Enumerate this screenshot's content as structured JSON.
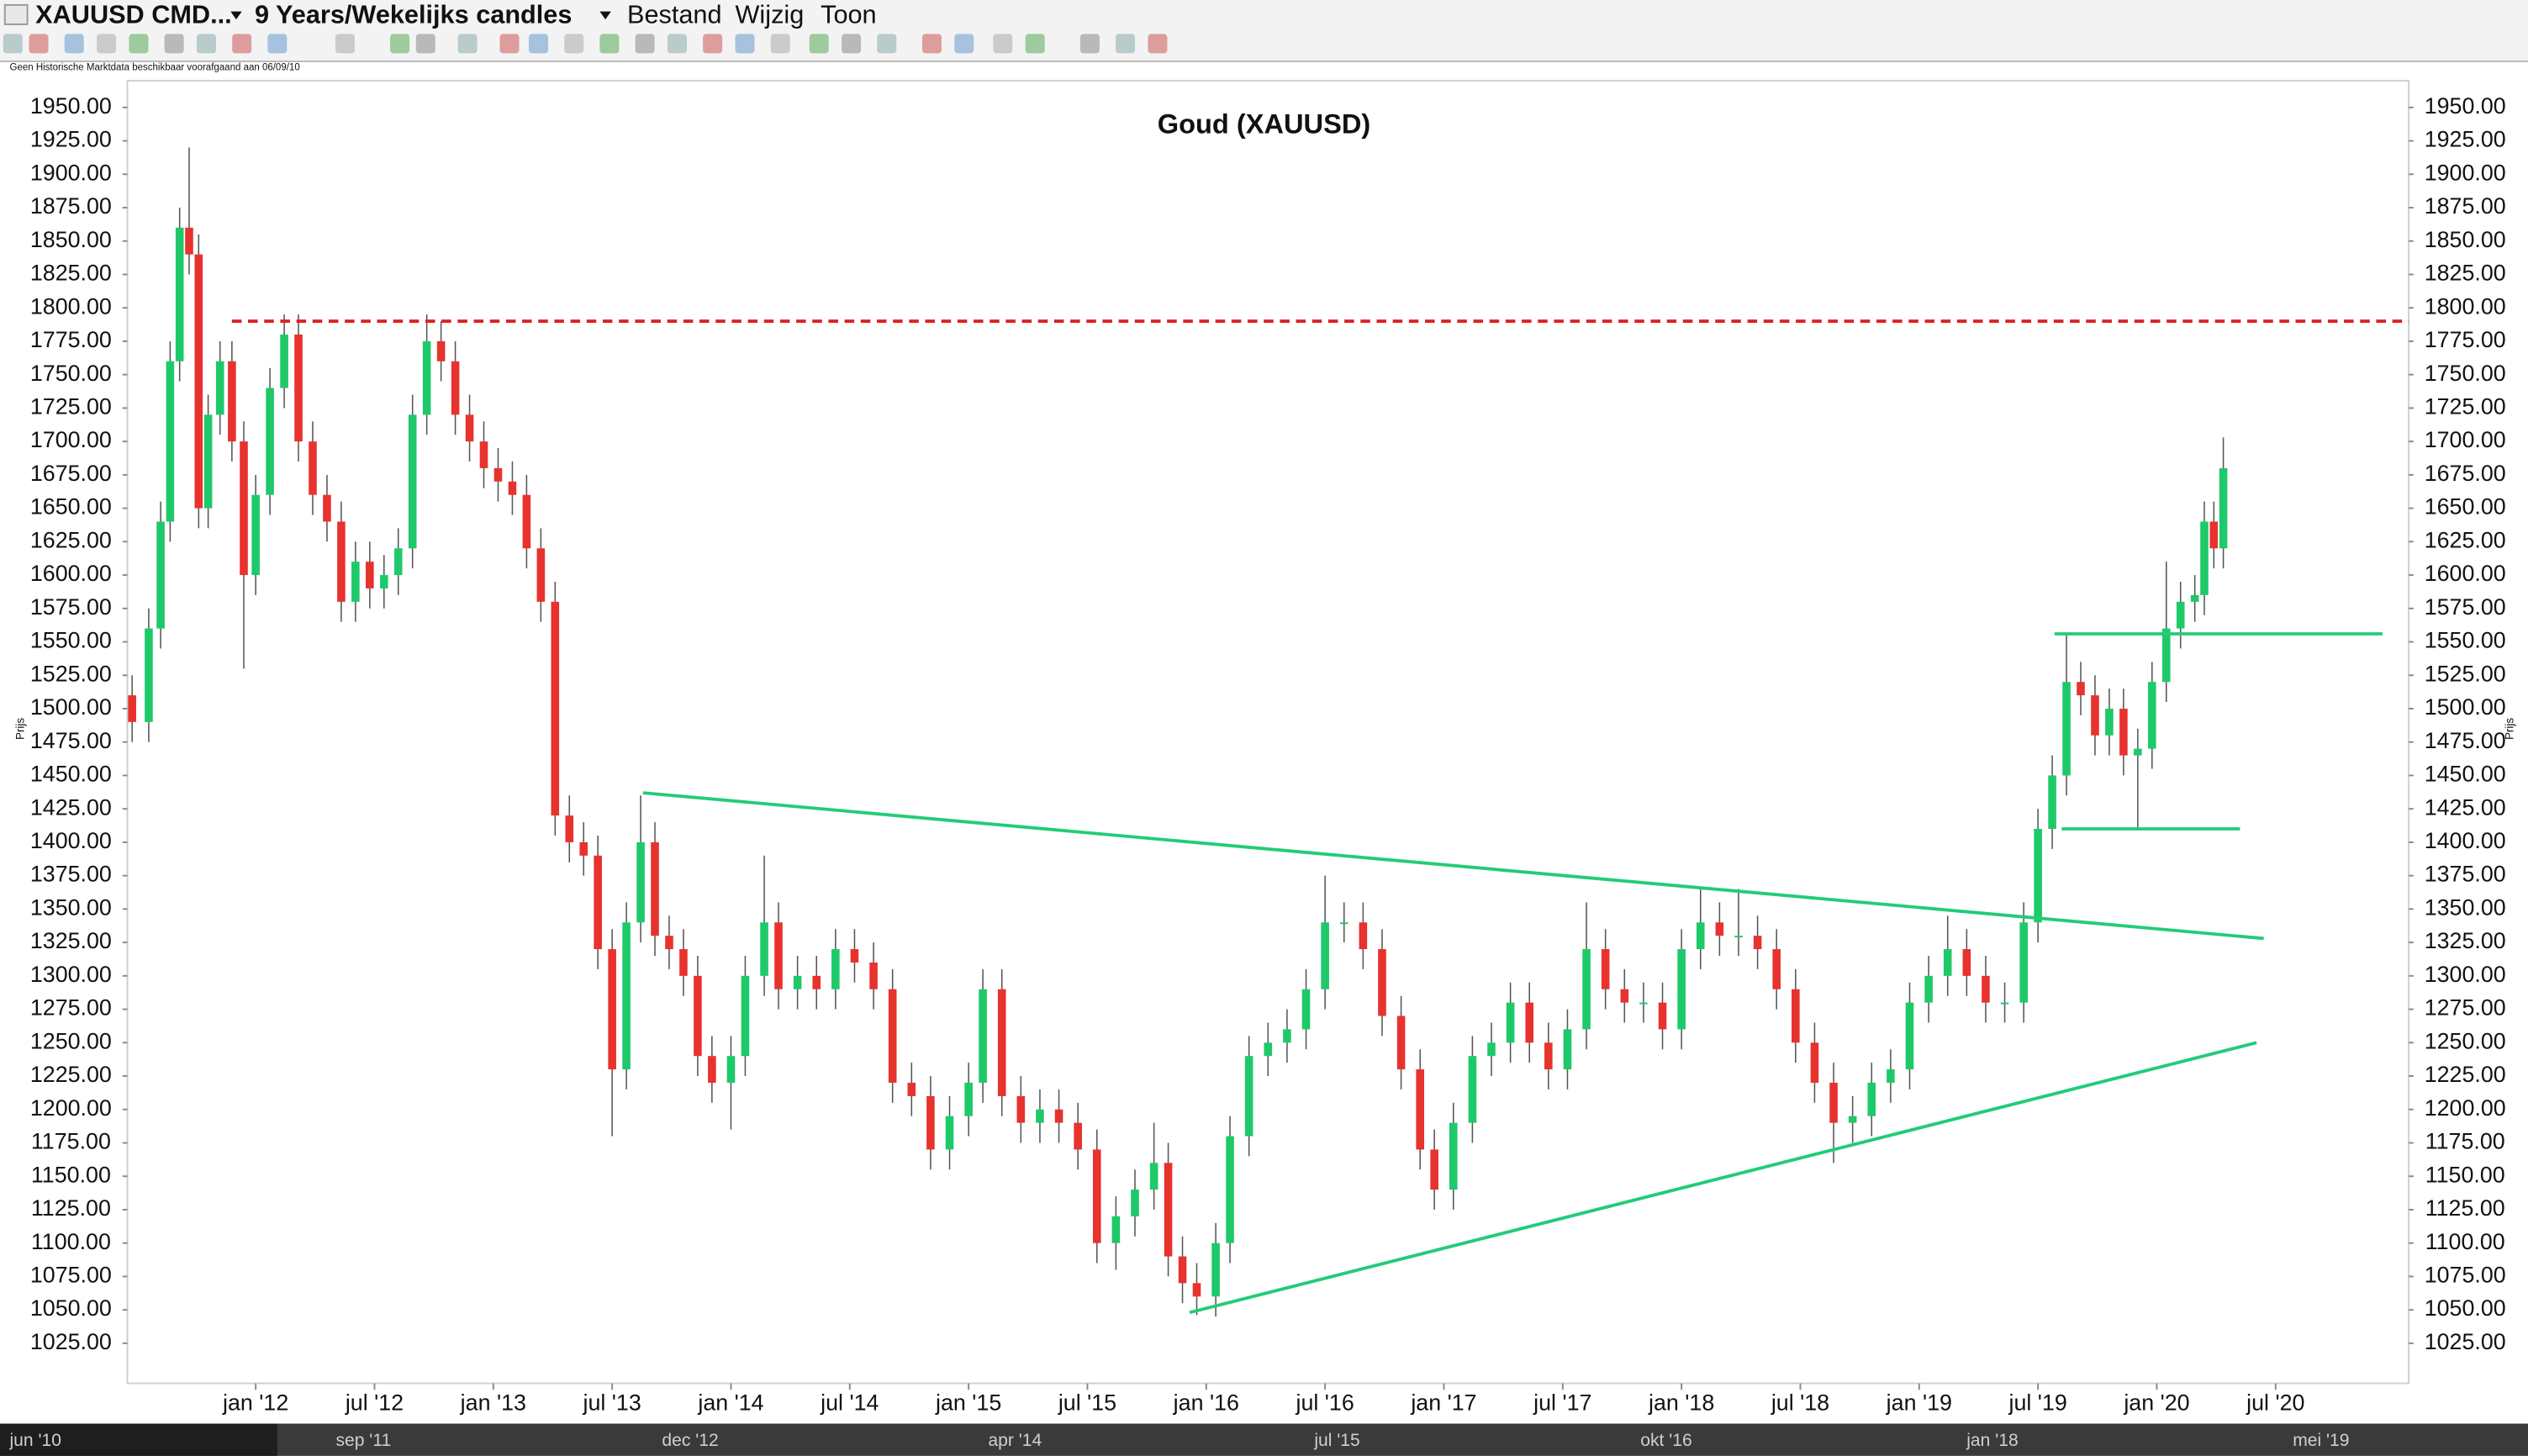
{
  "toolbar": {
    "symbol": "XAUUSD CMD...",
    "period": "9 Years/Wekelijks candles",
    "menus": [
      "Bestand",
      "Wijzig",
      "Toon"
    ],
    "notice": "Geen Historische Marktdata beschikbaar voorafgaand aan 06/09/10"
  },
  "chart_data": {
    "type": "candlestick",
    "title": "Goud (XAUUSD)",
    "y_label": "Prijs",
    "x": [
      2011.48,
      2011.55,
      2011.6,
      2011.64,
      2011.68,
      2011.72,
      2011.76,
      2011.8,
      2011.85,
      2011.9,
      2011.95,
      2012.0,
      2012.06,
      2012.12,
      2012.18,
      2012.24,
      2012.3,
      2012.36,
      2012.42,
      2012.48,
      2012.54,
      2012.6,
      2012.66,
      2012.72,
      2012.78,
      2012.84,
      2012.9,
      2012.96,
      2013.02,
      2013.08,
      2013.14,
      2013.2,
      2013.26,
      2013.32,
      2013.38,
      2013.44,
      2013.5,
      2013.56,
      2013.62,
      2013.68,
      2013.74,
      2013.8,
      2013.86,
      2013.92,
      2014.0,
      2014.06,
      2014.14,
      2014.2,
      2014.28,
      2014.36,
      2014.44,
      2014.52,
      2014.6,
      2014.68,
      2014.76,
      2014.84,
      2014.92,
      2015.0,
      2015.06,
      2015.14,
      2015.22,
      2015.3,
      2015.38,
      2015.46,
      2015.54,
      2015.62,
      2015.7,
      2015.78,
      2015.84,
      2015.9,
      2015.96,
      2016.04,
      2016.1,
      2016.18,
      2016.26,
      2016.34,
      2016.42,
      2016.5,
      2016.58,
      2016.66,
      2016.74,
      2016.82,
      2016.9,
      2016.96,
      2017.04,
      2017.12,
      2017.2,
      2017.28,
      2017.36,
      2017.44,
      2017.52,
      2017.6,
      2017.68,
      2017.76,
      2017.84,
      2017.92,
      2018.0,
      2018.08,
      2018.16,
      2018.24,
      2018.32,
      2018.4,
      2018.48,
      2018.56,
      2018.64,
      2018.72,
      2018.8,
      2018.88,
      2018.96,
      2019.04,
      2019.12,
      2019.2,
      2019.28,
      2019.36,
      2019.44,
      2019.5,
      2019.56,
      2019.62,
      2019.68,
      2019.74,
      2019.8,
      2019.86,
      2019.92,
      2019.98,
      2020.04,
      2020.1,
      2020.16,
      2020.2,
      2020.24,
      2020.28
    ],
    "open": [
      1510,
      1490,
      1560,
      1640,
      1760,
      1860,
      1840,
      1650,
      1720,
      1760,
      1700,
      1600,
      1660,
      1740,
      1780,
      1700,
      1660,
      1640,
      1580,
      1610,
      1590,
      1600,
      1620,
      1720,
      1775,
      1760,
      1720,
      1700,
      1680,
      1670,
      1660,
      1620,
      1580,
      1420,
      1400,
      1390,
      1320,
      1230,
      1340,
      1400,
      1330,
      1320,
      1300,
      1240,
      1220,
      1240,
      1300,
      1340,
      1290,
      1300,
      1290,
      1320,
      1310,
      1290,
      1220,
      1210,
      1170,
      1195,
      1220,
      1290,
      1210,
      1190,
      1200,
      1190,
      1170,
      1100,
      1120,
      1140,
      1160,
      1090,
      1070,
      1060,
      1100,
      1180,
      1240,
      1250,
      1260,
      1290,
      1340,
      1340,
      1320,
      1270,
      1230,
      1170,
      1140,
      1190,
      1240,
      1250,
      1280,
      1250,
      1230,
      1260,
      1320,
      1290,
      1280,
      1280,
      1260,
      1320,
      1340,
      1330,
      1330,
      1320,
      1290,
      1250,
      1220,
      1190,
      1195,
      1220,
      1230,
      1280,
      1300,
      1320,
      1300,
      1280,
      1280,
      1340,
      1410,
      1450,
      1520,
      1510,
      1480,
      1500,
      1465,
      1470,
      1520,
      1560,
      1580,
      1585,
      1640,
      1620
    ],
    "high": [
      1525,
      1575,
      1655,
      1775,
      1875,
      1920,
      1855,
      1735,
      1775,
      1775,
      1715,
      1675,
      1755,
      1795,
      1795,
      1715,
      1675,
      1655,
      1625,
      1625,
      1615,
      1635,
      1735,
      1795,
      1790,
      1775,
      1735,
      1715,
      1695,
      1685,
      1675,
      1635,
      1595,
      1435,
      1415,
      1405,
      1335,
      1355,
      1435,
      1415,
      1345,
      1335,
      1315,
      1255,
      1255,
      1315,
      1390,
      1355,
      1315,
      1315,
      1335,
      1335,
      1325,
      1305,
      1235,
      1225,
      1210,
      1235,
      1305,
      1305,
      1225,
      1215,
      1215,
      1205,
      1185,
      1135,
      1155,
      1190,
      1175,
      1105,
      1085,
      1115,
      1195,
      1255,
      1265,
      1275,
      1305,
      1375,
      1355,
      1355,
      1335,
      1285,
      1245,
      1185,
      1205,
      1255,
      1265,
      1295,
      1295,
      1265,
      1275,
      1355,
      1335,
      1305,
      1295,
      1295,
      1335,
      1365,
      1355,
      1365,
      1345,
      1335,
      1305,
      1265,
      1235,
      1210,
      1235,
      1245,
      1295,
      1315,
      1345,
      1335,
      1315,
      1295,
      1355,
      1425,
      1465,
      1555,
      1535,
      1525,
      1515,
      1515,
      1485,
      1535,
      1610,
      1595,
      1600,
      1655,
      1655,
      1703
    ],
    "low": [
      1475,
      1475,
      1545,
      1625,
      1745,
      1825,
      1635,
      1635,
      1705,
      1685,
      1530,
      1585,
      1645,
      1725,
      1685,
      1645,
      1625,
      1565,
      1565,
      1575,
      1575,
      1585,
      1605,
      1705,
      1745,
      1705,
      1685,
      1665,
      1655,
      1645,
      1605,
      1565,
      1405,
      1385,
      1375,
      1305,
      1180,
      1215,
      1325,
      1315,
      1305,
      1285,
      1225,
      1205,
      1185,
      1225,
      1285,
      1275,
      1275,
      1275,
      1275,
      1295,
      1275,
      1205,
      1195,
      1155,
      1155,
      1180,
      1205,
      1195,
      1175,
      1175,
      1175,
      1155,
      1085,
      1080,
      1105,
      1125,
      1075,
      1055,
      1046,
      1045,
      1085,
      1165,
      1225,
      1235,
      1245,
      1275,
      1325,
      1305,
      1255,
      1215,
      1155,
      1125,
      1125,
      1175,
      1225,
      1235,
      1235,
      1215,
      1215,
      1245,
      1275,
      1265,
      1265,
      1245,
      1245,
      1305,
      1315,
      1315,
      1305,
      1275,
      1235,
      1205,
      1160,
      1175,
      1180,
      1205,
      1215,
      1265,
      1285,
      1285,
      1265,
      1265,
      1265,
      1325,
      1395,
      1435,
      1495,
      1465,
      1465,
      1450,
      1410,
      1455,
      1505,
      1545,
      1565,
      1570,
      1605,
      1605
    ],
    "close": [
      1490,
      1560,
      1640,
      1760,
      1860,
      1840,
      1650,
      1720,
      1760,
      1700,
      1600,
      1660,
      1740,
      1780,
      1700,
      1660,
      1640,
      1580,
      1610,
      1590,
      1600,
      1620,
      1720,
      1775,
      1760,
      1720,
      1700,
      1680,
      1670,
      1660,
      1620,
      1580,
      1420,
      1400,
      1390,
      1320,
      1230,
      1340,
      1400,
      1330,
      1320,
      1300,
      1240,
      1220,
      1240,
      1300,
      1340,
      1290,
      1300,
      1290,
      1320,
      1310,
      1290,
      1220,
      1210,
      1170,
      1195,
      1220,
      1290,
      1210,
      1190,
      1200,
      1190,
      1170,
      1100,
      1120,
      1140,
      1160,
      1090,
      1070,
      1060,
      1100,
      1180,
      1240,
      1250,
      1260,
      1290,
      1340,
      1340,
      1320,
      1270,
      1230,
      1170,
      1140,
      1190,
      1240,
      1250,
      1280,
      1250,
      1230,
      1260,
      1320,
      1290,
      1280,
      1280,
      1260,
      1320,
      1340,
      1330,
      1330,
      1320,
      1290,
      1250,
      1220,
      1190,
      1195,
      1220,
      1230,
      1280,
      1300,
      1320,
      1300,
      1280,
      1280,
      1340,
      1410,
      1450,
      1520,
      1510,
      1480,
      1500,
      1465,
      1470,
      1520,
      1560,
      1580,
      1585,
      1640,
      1620,
      1680
    ],
    "up_color": "#1ec96a",
    "down_color": "#e8322e",
    "xlim": [
      2011.46,
      2021.06
    ],
    "ylim": [
      995,
      1970
    ],
    "xticks": [
      {
        "value": 2012,
        "label": "jan '12"
      },
      {
        "value": 2012.5,
        "label": "jul '12"
      },
      {
        "value": 2013,
        "label": "jan '13"
      },
      {
        "value": 2013.5,
        "label": "jul '13"
      },
      {
        "value": 2014,
        "label": "jan '14"
      },
      {
        "value": 2014.5,
        "label": "jul '14"
      },
      {
        "value": 2015,
        "label": "jan '15"
      },
      {
        "value": 2015.5,
        "label": "jul '15"
      },
      {
        "value": 2016,
        "label": "jan '16"
      },
      {
        "value": 2016.5,
        "label": "jul '16"
      },
      {
        "value": 2017,
        "label": "jan '17"
      },
      {
        "value": 2017.5,
        "label": "jul '17"
      },
      {
        "value": 2018,
        "label": "jan '18"
      },
      {
        "value": 2018.5,
        "label": "jul '18"
      },
      {
        "value": 2019,
        "label": "jan '19"
      },
      {
        "value": 2019.5,
        "label": "jul '19"
      },
      {
        "value": 2020,
        "label": "jan '20"
      },
      {
        "value": 2020.5,
        "label": "jul '20"
      }
    ],
    "yticks": [
      {
        "value": 1025,
        "label": "1025.00"
      },
      {
        "value": 1050,
        "label": "1050.00"
      },
      {
        "value": 1075,
        "label": "1075.00"
      },
      {
        "value": 1100,
        "label": "1100.00"
      },
      {
        "value": 1125,
        "label": "1125.00"
      },
      {
        "value": 1150,
        "label": "1150.00"
      },
      {
        "value": 1175,
        "label": "1175.00"
      },
      {
        "value": 1200,
        "label": "1200.00"
      },
      {
        "value": 1225,
        "label": "1225.00"
      },
      {
        "value": 1250,
        "label": "1250.00"
      },
      {
        "value": 1275,
        "label": "1275.00"
      },
      {
        "value": 1300,
        "label": "1300.00"
      },
      {
        "value": 1325,
        "label": "1325.00"
      },
      {
        "value": 1350,
        "label": "1350.00"
      },
      {
        "value": 1375,
        "label": "1375.00"
      },
      {
        "value": 1400,
        "label": "1400.00"
      },
      {
        "value": 1425,
        "label": "1425.00"
      },
      {
        "value": 1450,
        "label": "1450.00"
      },
      {
        "value": 1475,
        "label": "1475.00"
      },
      {
        "value": 1500,
        "label": "1500.00"
      },
      {
        "value": 1525,
        "label": "1525.00"
      },
      {
        "value": 1550,
        "label": "1550.00"
      },
      {
        "value": 1575,
        "label": "1575.00"
      },
      {
        "value": 1600,
        "label": "1600.00"
      },
      {
        "value": 1625,
        "label": "1625.00"
      },
      {
        "value": 1650,
        "label": "1650.00"
      },
      {
        "value": 1675,
        "label": "1675.00"
      },
      {
        "value": 1700,
        "label": "1700.00"
      },
      {
        "value": 1725,
        "label": "1725.00"
      },
      {
        "value": 1750,
        "label": "1750.00"
      },
      {
        "value": 1775,
        "label": "1775.00"
      },
      {
        "value": 1800,
        "label": "1800.00"
      },
      {
        "value": 1825,
        "label": "1825.00"
      },
      {
        "value": 1850,
        "label": "1850.00"
      },
      {
        "value": 1875,
        "label": "1875.00"
      },
      {
        "value": 1900,
        "label": "1900.00"
      },
      {
        "value": 1925,
        "label": "1925.00"
      },
      {
        "value": 1950,
        "label": "1950.00"
      }
    ],
    "lines": [
      {
        "color": "#e02020",
        "dash": true,
        "x": [
          2011.9,
          2021.06
        ],
        "y": [
          1790,
          1790
        ]
      },
      {
        "color": "#22cc77",
        "dash": false,
        "x": [
          2013.63,
          2020.45
        ],
        "y": [
          1437,
          1328
        ]
      },
      {
        "color": "#22cc77",
        "dash": false,
        "x": [
          2015.93,
          2020.42
        ],
        "y": [
          1048,
          1250
        ]
      },
      {
        "color": "#22cc77",
        "dash": false,
        "x": [
          2019.57,
          2020.95
        ],
        "y": [
          1556,
          1556
        ]
      },
      {
        "color": "#22cc77",
        "dash": false,
        "x": [
          2019.6,
          2020.35
        ],
        "y": [
          1410,
          1410
        ]
      }
    ]
  },
  "navigator": {
    "labels": [
      "jun '10",
      "sep '11",
      "dec '12",
      "apr '14",
      "jul '15",
      "okt '16",
      "jan '18",
      "mei '19"
    ]
  }
}
